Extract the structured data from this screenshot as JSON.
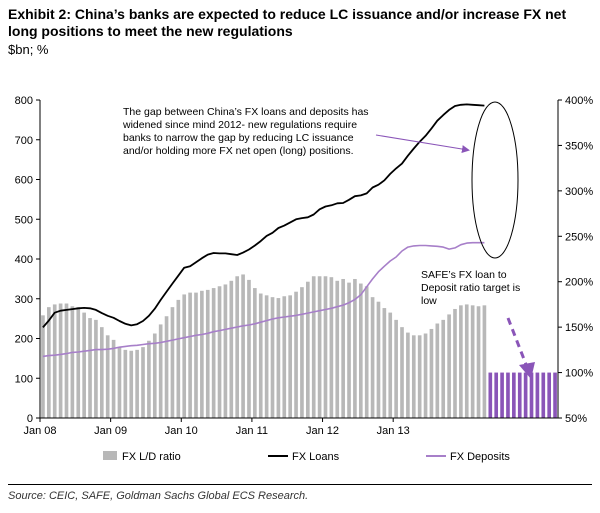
{
  "header": {
    "title": "Exhibit 2: China’s banks are expected to reduce LC issuance and/or increase FX net long positions to meet the new regulations",
    "units": "$bn; %"
  },
  "footer": {
    "source": "Source: CEIC, SAFE, Goldman Sachs Global ECS Research."
  },
  "colors": {
    "bars": "#b8b8b8",
    "loans": "#000000",
    "deposits": "#a77fc9",
    "target": "#8a55b8"
  },
  "chart_data": {
    "type": "bar+line",
    "x_tick_labels": [
      "Jan 08",
      "Jan 09",
      "Jan 10",
      "Jan 11",
      "Jan 12",
      "Jan 13"
    ],
    "y_left": {
      "range": [
        0,
        800
      ],
      "ticks": [
        "0",
        "100",
        "200",
        "300",
        "400",
        "500",
        "600",
        "700",
        "800"
      ]
    },
    "y_right": {
      "range": [
        50,
        400
      ],
      "ticks": [
        "50%",
        "100%",
        "150%",
        "200%",
        "250%",
        "300%",
        "350%",
        "400%"
      ]
    },
    "series": [
      {
        "name": "FX L/D ratio",
        "kind": "bar",
        "axis": "right",
        "start_month_index": 0,
        "values": [
          163,
          172,
          175,
          176,
          176,
          173,
          172,
          166,
          160,
          158,
          150,
          141,
          136,
          128,
          125,
          124,
          125,
          128,
          135,
          143,
          153,
          162,
          172,
          180,
          186,
          188,
          188,
          190,
          191,
          193,
          195,
          197,
          201,
          206,
          208,
          202,
          193,
          187,
          185,
          183,
          182,
          184,
          185,
          189,
          194,
          200,
          206,
          206,
          206,
          205,
          201,
          203,
          199,
          203,
          198,
          195,
          183,
          178,
          171,
          166,
          158,
          150,
          144,
          141,
          141,
          143,
          148,
          154,
          158,
          164,
          170,
          174,
          175,
          174,
          173,
          174
        ]
      },
      {
        "name": "SAFE target FX L/D ratio",
        "kind": "bar",
        "axis": "right",
        "start_month_index": 76,
        "values": [
          100,
          100,
          100,
          100,
          100,
          100,
          100,
          100,
          100,
          100,
          100,
          100
        ]
      },
      {
        "name": "FX Loans",
        "kind": "line",
        "axis": "left",
        "start_month_index": 0,
        "values": [
          228,
          245,
          265,
          270,
          272,
          274,
          276,
          277,
          276,
          272,
          264,
          257,
          252,
          244,
          237,
          233,
          236,
          244,
          257,
          275,
          297,
          318,
          338,
          358,
          378,
          382,
          392,
          402,
          411,
          415,
          414,
          414,
          412,
          410,
          416,
          424,
          434,
          445,
          458,
          466,
          478,
          484,
          492,
          500,
          503,
          505,
          512,
          525,
          532,
          535,
          540,
          541,
          549,
          558,
          560,
          565,
          580,
          587,
          598,
          614,
          628,
          640,
          660,
          678,
          695,
          710,
          728,
          748,
          762,
          775,
          785,
          788,
          789,
          788,
          787,
          786
        ]
      },
      {
        "name": "FX Deposits",
        "kind": "line",
        "axis": "left",
        "start_month_index": 0,
        "values": [
          155,
          157,
          158,
          160,
          162,
          165,
          166,
          168,
          170,
          172,
          172,
          173,
          175,
          178,
          180,
          182,
          183,
          185,
          187,
          188,
          190,
          193,
          196,
          199,
          202,
          205,
          208,
          210,
          213,
          217,
          220,
          223,
          226,
          229,
          232,
          234,
          237,
          241,
          245,
          249,
          252,
          254,
          256,
          258,
          261,
          264,
          267,
          270,
          273,
          276,
          280,
          284,
          290,
          298,
          310,
          330,
          350,
          368,
          382,
          395,
          405,
          420,
          430,
          433,
          434,
          434,
          433,
          432,
          430,
          425,
          428,
          436,
          440,
          441,
          441,
          441
        ]
      }
    ],
    "legend": [
      "FX L/D ratio",
      "FX Loans",
      "FX Deposits"
    ],
    "annotations": [
      {
        "id": "gap",
        "text": [
          "The gap between China’s FX loans and deposits has",
          "widened since mind 2012- new regulations require",
          "banks to narrow the gap by reducing LC issuance",
          "and/or holding more FX net open (long) positions."
        ]
      },
      {
        "id": "target",
        "text": [
          "SAFE’s FX loan to",
          "Deposit ratio target is",
          "low"
        ]
      }
    ]
  }
}
